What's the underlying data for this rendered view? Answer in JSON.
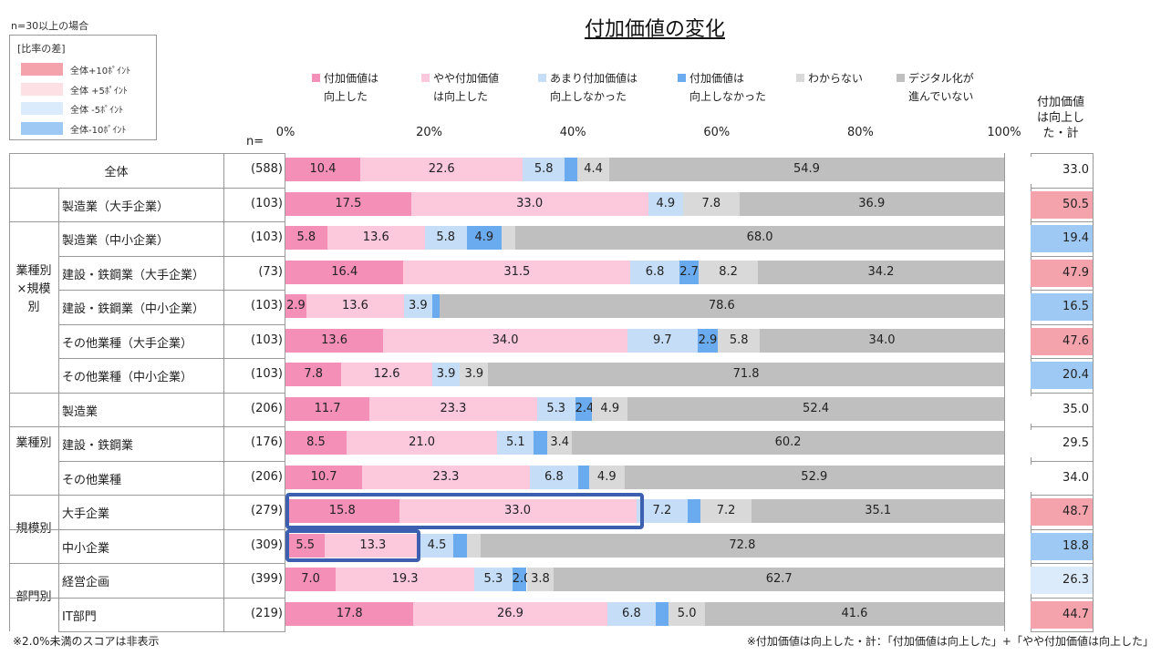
{
  "note_top": "n=30以上の場合",
  "title": "付加価値の変化",
  "legend_box": {
    "header": "[比率の差]",
    "items": [
      {
        "label": "全体+10ﾎﾟｲﾝﾄ",
        "color": "#f4a3ac"
      },
      {
        "label": "全体 +5ﾎﾟｲﾝﾄ",
        "color": "#fde0e3"
      },
      {
        "label": "全体 -5ﾎﾟｲﾝﾄ",
        "color": "#dcebfb"
      },
      {
        "label": "全体-10ﾎﾟｲﾝﾄ",
        "color": "#9ec9f4"
      }
    ]
  },
  "n_header": "n=",
  "total_header": "付加価値\nは向上し\nた・計",
  "footnote_left": "※2.0%未満のスコアは非表示",
  "footnote_right": "※付加価値は向上した・計：「付加価値は向上した」+「やや付加価値は向上した」",
  "chart_data": {
    "type": "bar",
    "orientation": "horizontal",
    "stacked": true,
    "percent": true,
    "xlim": [
      0,
      100
    ],
    "x_ticks": [
      "0%",
      "20%",
      "40%",
      "60%",
      "80%",
      "100%"
    ],
    "series": [
      {
        "name": "付加価値は\n向上した",
        "color": "#f48fb8"
      },
      {
        "name": "やや付加価値\nは向上した",
        "color": "#fbc8dc"
      },
      {
        "name": "あまり付加価値は\n向上しなかった",
        "color": "#c5ddf6"
      },
      {
        "name": "付加価値は\n向上しなかった",
        "color": "#6aaaee"
      },
      {
        "name": "わからない",
        "color": "#d9d9d9"
      },
      {
        "name": "デジタル化が\n進んでいない",
        "color": "#bfbfbf"
      }
    ],
    "rows": [
      {
        "group": "",
        "label": "全体",
        "n": "(588)",
        "values": [
          10.4,
          22.6,
          5.8,
          1.8,
          4.4,
          54.9
        ],
        "labels": [
          "10.4",
          "22.6",
          "5.8",
          "",
          "4.4",
          "54.9"
        ],
        "total": "33.0",
        "total_color": "#ffffff"
      },
      {
        "group": "業種別×規模別",
        "label": "製造業（大手企業）",
        "n": "(103)",
        "values": [
          17.5,
          33.0,
          4.9,
          0,
          7.8,
          36.9
        ],
        "labels": [
          "17.5",
          "33.0",
          "4.9",
          "",
          "7.8",
          "36.9"
        ],
        "total": "50.5",
        "total_color": "#f4a3ac"
      },
      {
        "group": "業種別×規模別",
        "label": "製造業（中小企業）",
        "n": "(103)",
        "values": [
          5.8,
          13.6,
          5.8,
          4.9,
          1.9,
          68.0
        ],
        "labels": [
          "5.8",
          "13.6",
          "5.8",
          "4.9",
          "",
          "68.0"
        ],
        "total": "19.4",
        "total_color": "#9ec9f4"
      },
      {
        "group": "業種別×規模別",
        "label": "建設・鉄鋼業（大手企業）",
        "n": "(73)",
        "values": [
          16.4,
          31.5,
          6.8,
          2.7,
          8.2,
          34.2
        ],
        "labels": [
          "16.4",
          "31.5",
          "6.8",
          "2.7",
          "8.2",
          "34.2"
        ],
        "total": "47.9",
        "total_color": "#f4a3ac"
      },
      {
        "group": "業種別×規模別",
        "label": "建設・鉄鋼業（中小企業）",
        "n": "(103)",
        "values": [
          2.9,
          13.6,
          3.9,
          1.0,
          0,
          78.6
        ],
        "labels": [
          "2.9",
          "13.6",
          "3.9",
          "",
          "",
          "78.6"
        ],
        "total": "16.5",
        "total_color": "#9ec9f4"
      },
      {
        "group": "業種別×規模別",
        "label": "その他業種（大手企業）",
        "n": "(103)",
        "values": [
          13.6,
          34.0,
          9.7,
          2.9,
          5.8,
          34.0
        ],
        "labels": [
          "13.6",
          "34.0",
          "9.7",
          "2.9",
          "5.8",
          "34.0"
        ],
        "total": "47.6",
        "total_color": "#f4a3ac"
      },
      {
        "group": "業種別×規模別",
        "label": "その他業種（中小企業）",
        "n": "(103)",
        "values": [
          7.8,
          12.6,
          3.9,
          0,
          3.9,
          71.8
        ],
        "labels": [
          "7.8",
          "12.6",
          "3.9",
          "",
          "3.9",
          "71.8"
        ],
        "total": "20.4",
        "total_color": "#9ec9f4"
      },
      {
        "group": "業種別",
        "label": "製造業",
        "n": "(206)",
        "values": [
          11.7,
          23.3,
          5.3,
          2.4,
          4.9,
          52.4
        ],
        "labels": [
          "11.7",
          "23.3",
          "5.3",
          "2.4",
          "4.9",
          "52.4"
        ],
        "total": "35.0",
        "total_color": "#ffffff"
      },
      {
        "group": "業種別",
        "label": "建設・鉄鋼業",
        "n": "(176)",
        "values": [
          8.5,
          21.0,
          5.1,
          1.9,
          3.4,
          60.2
        ],
        "labels": [
          "8.5",
          "21.0",
          "5.1",
          "",
          "3.4",
          "60.2"
        ],
        "total": "29.5",
        "total_color": "#ffffff"
      },
      {
        "group": "業種別",
        "label": "その他業種",
        "n": "(206)",
        "values": [
          10.7,
          23.3,
          6.8,
          1.5,
          4.9,
          52.9
        ],
        "labels": [
          "10.7",
          "23.3",
          "6.8",
          "",
          "4.9",
          "52.9"
        ],
        "total": "34.0",
        "total_color": "#ffffff"
      },
      {
        "group": "規模別",
        "label": "大手企業",
        "n": "(279)",
        "values": [
          15.8,
          33.0,
          7.2,
          1.7,
          7.2,
          35.1
        ],
        "labels": [
          "15.8",
          "33.0",
          "7.2",
          "",
          "7.2",
          "35.1"
        ],
        "total": "48.7",
        "total_color": "#f4a3ac"
      },
      {
        "group": "規模別",
        "label": "中小企業",
        "n": "(309)",
        "values": [
          5.5,
          13.3,
          4.5,
          1.9,
          1.9,
          72.8
        ],
        "labels": [
          "5.5",
          "13.3",
          "4.5",
          "",
          "",
          "72.8"
        ],
        "total": "18.8",
        "total_color": "#9ec9f4"
      },
      {
        "group": "部門別",
        "label": "経営企画",
        "n": "(399)",
        "values": [
          7.0,
          19.3,
          5.3,
          2.0,
          3.8,
          62.7
        ],
        "labels": [
          "7.0",
          "19.3",
          "5.3",
          "2.0",
          "3.8",
          "62.7"
        ],
        "total": "26.3",
        "total_color": "#dcebfb"
      },
      {
        "group": "部門別",
        "label": "IT部門",
        "n": "(219)",
        "values": [
          17.8,
          26.9,
          6.8,
          1.8,
          5.0,
          41.6
        ],
        "labels": [
          "17.8",
          "26.9",
          "6.8",
          "",
          "5.0",
          "41.6"
        ],
        "total": "44.7",
        "total_color": "#f4a3ac"
      }
    ],
    "groups": [
      {
        "label": "業種別\n×規模\n別"
      },
      {
        "label": "業種別"
      },
      {
        "label": "規模別"
      },
      {
        "label": "部門別"
      }
    ]
  }
}
